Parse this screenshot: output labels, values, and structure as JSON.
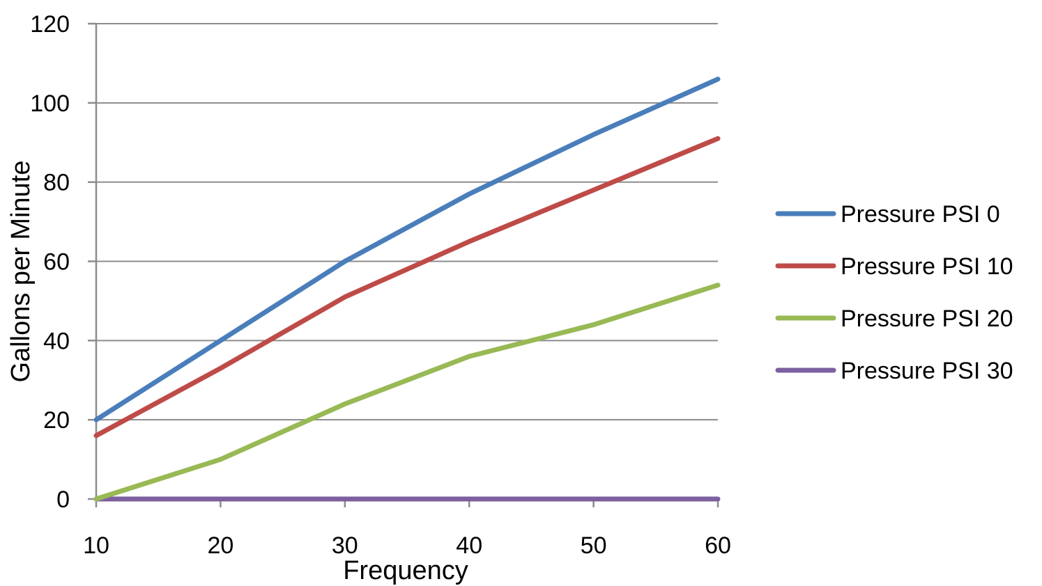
{
  "chart_data": {
    "type": "line",
    "title": "",
    "xlabel": "Frequency",
    "ylabel": "Gallons per Minute",
    "x": [
      10,
      20,
      30,
      40,
      50,
      60
    ],
    "xticks": [
      "10",
      "20",
      "30",
      "40",
      "50",
      "60"
    ],
    "ylim": [
      0,
      120
    ],
    "yticks": [
      "0",
      "20",
      "40",
      "60",
      "80",
      "100",
      "120"
    ],
    "grid": true,
    "legend": "right",
    "series": [
      {
        "name": "Pressure PSI 0",
        "color": "#4a7ebb",
        "values": [
          20,
          40,
          60,
          77,
          92,
          106
        ]
      },
      {
        "name": "Pressure PSI 10",
        "color": "#be4b48",
        "values": [
          16,
          33,
          51,
          65,
          78,
          91
        ]
      },
      {
        "name": "Pressure PSI 20",
        "color": "#98b954",
        "values": [
          0,
          10,
          24,
          36,
          44,
          54
        ]
      },
      {
        "name": "Pressure PSI 30",
        "color": "#7d60a0",
        "values": [
          0,
          0,
          0,
          0,
          0,
          0
        ]
      }
    ]
  }
}
